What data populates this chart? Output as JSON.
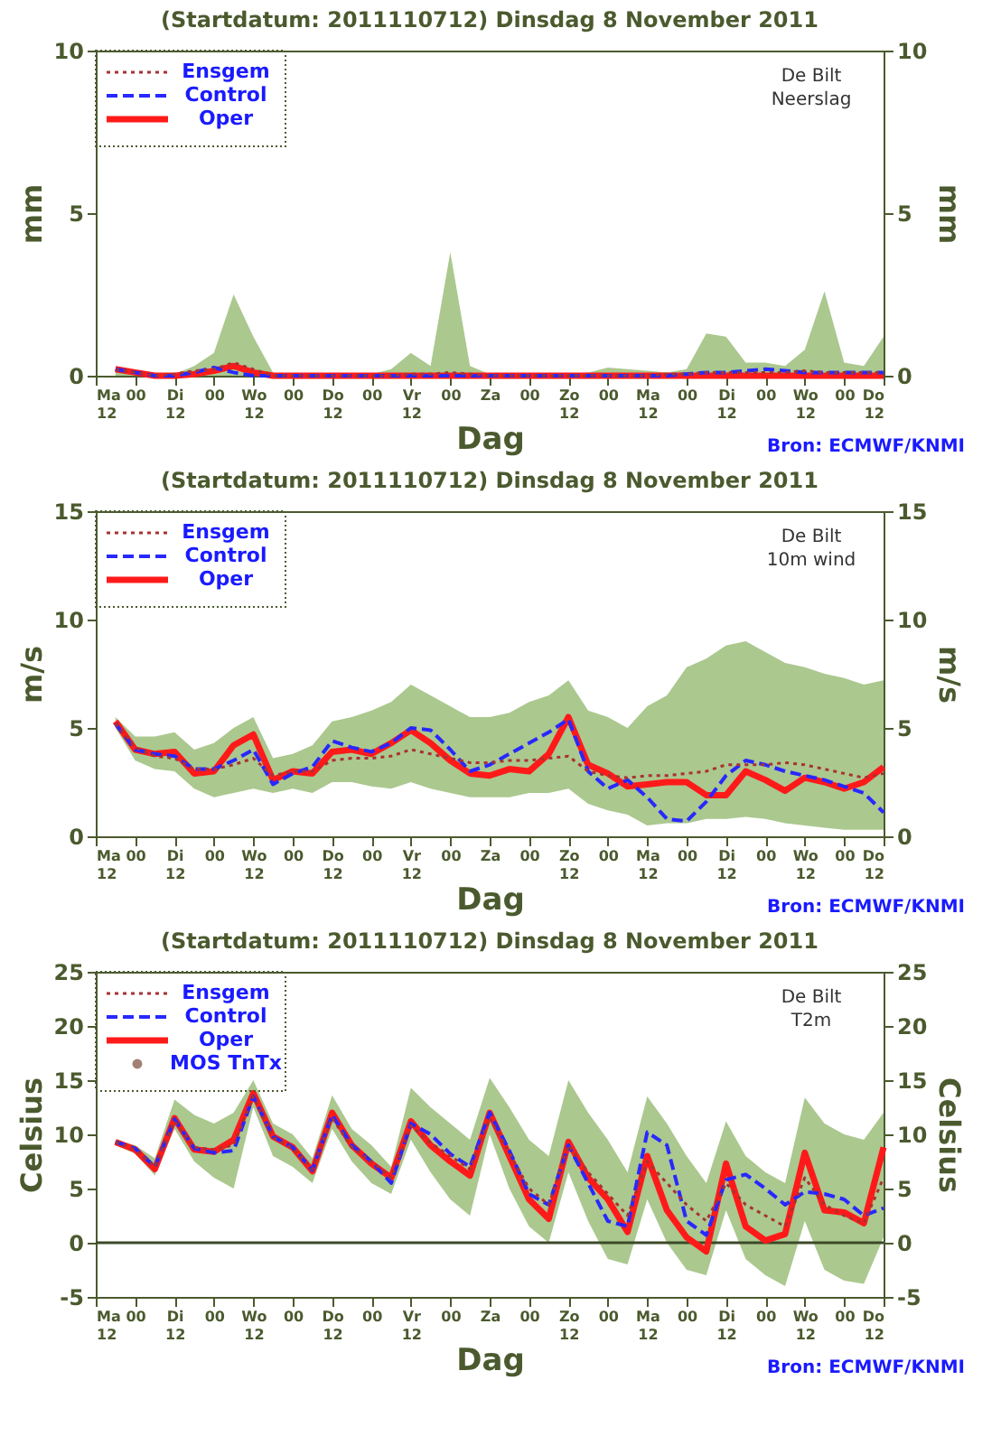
{
  "chart_data": [
    {
      "type": "line",
      "title": "(Startdatum: 2011110712)   Dinsdag    8 November  2011",
      "xlabel": "Dag",
      "ylabel": "mm",
      "y2label": "mm",
      "legend": "top left",
      "annotations": [
        "De Bilt",
        "Neerslag",
        "Bron: ECMWF/KNMI"
      ],
      "x": [
        "2011-11-07T18:00",
        "2011-11-08T00:00",
        "2011-11-08T06:00",
        "2011-11-08T12:00",
        "2011-11-08T18:00",
        "2011-11-09T00:00",
        "2011-11-09T06:00",
        "2011-11-09T12:00",
        "2011-11-09T18:00",
        "2011-11-10T00:00",
        "2011-11-10T06:00",
        "2011-11-10T12:00",
        "2011-11-10T18:00",
        "2011-11-11T00:00",
        "2011-11-11T06:00",
        "2011-11-11T12:00",
        "2011-11-11T18:00",
        "2011-11-12T00:00",
        "2011-11-12T06:00",
        "2011-11-12T12:00",
        "2011-11-12T18:00",
        "2011-11-13T00:00",
        "2011-11-13T06:00",
        "2011-11-13T12:00",
        "2011-11-13T18:00",
        "2011-11-14T00:00",
        "2011-11-14T06:00",
        "2011-11-14T12:00",
        "2011-11-14T18:00",
        "2011-11-15T00:00",
        "2011-11-15T06:00",
        "2011-11-15T12:00",
        "2011-11-15T18:00",
        "2011-11-16T00:00",
        "2011-11-16T06:00",
        "2011-11-16T12:00",
        "2011-11-16T18:00",
        "2011-11-17T00:00",
        "2011-11-17T06:00",
        "2011-11-17T12:00"
      ],
      "xlim": [
        "2011-11-07T12:00",
        "2011-11-17T12:00"
      ],
      "xticks": [
        {
          "value": "2011-11-07T12:00",
          "label": "Ma\n12"
        },
        {
          "value": "2011-11-08T00:00",
          "label": "00"
        },
        {
          "value": "2011-11-08T12:00",
          "label": "Di\n12"
        },
        {
          "value": "2011-11-09T00:00",
          "label": "00"
        },
        {
          "value": "2011-11-09T12:00",
          "label": "Wo\n12"
        },
        {
          "value": "2011-11-10T00:00",
          "label": "00"
        },
        {
          "value": "2011-11-10T12:00",
          "label": "Do\n12"
        },
        {
          "value": "2011-11-11T00:00",
          "label": "00"
        },
        {
          "value": "2011-11-11T12:00",
          "label": "Vr\n12"
        },
        {
          "value": "2011-11-12T00:00",
          "label": "00"
        },
        {
          "value": "2011-11-12T12:00",
          "label": "Za"
        },
        {
          "value": "2011-11-13T00:00",
          "label": "00"
        },
        {
          "value": "2011-11-13T12:00",
          "label": "Zo\n12"
        },
        {
          "value": "2011-11-14T00:00",
          "label": "00"
        },
        {
          "value": "2011-11-14T12:00",
          "label": "Ma\n12"
        },
        {
          "value": "2011-11-15T00:00",
          "label": "00"
        },
        {
          "value": "2011-11-15T12:00",
          "label": "Di\n12"
        },
        {
          "value": "2011-11-16T00:00",
          "label": "00"
        },
        {
          "value": "2011-11-16T12:00",
          "label": "Wo\n12"
        },
        {
          "value": "2011-11-17T00:00",
          "label": "00"
        },
        {
          "value": "2011-11-17T12:00",
          "label": "Do\n12"
        }
      ],
      "ylim": [
        0,
        10
      ],
      "yticks": [
        0,
        5,
        10
      ],
      "y2lim": [
        0,
        10
      ],
      "y2ticks": [
        0,
        5,
        10
      ],
      "series": [
        {
          "name": "Ensgem",
          "color": "#a83232",
          "line_style": "dotted",
          "values": [
            0.2,
            0.1,
            0.0,
            0.05,
            0.15,
            0.2,
            0.4,
            0.2,
            0,
            0,
            0,
            0,
            0,
            0,
            0,
            0.05,
            0.05,
            0.1,
            0.05,
            0,
            0,
            0,
            0,
            0,
            0,
            0,
            0,
            0,
            0.05,
            0.05,
            0.1,
            0.1,
            0.1,
            0.1,
            0.1,
            0.15,
            0.1,
            0.1,
            0.1,
            0.1
          ],
          "lower": [
            0,
            0,
            0,
            0,
            0,
            0,
            0,
            0,
            0,
            0,
            0,
            0,
            0,
            0,
            0,
            0,
            0,
            0,
            0,
            0,
            0,
            0,
            0,
            0,
            0,
            0,
            0,
            0,
            0,
            0,
            0,
            0,
            0,
            0,
            0,
            0,
            0,
            0,
            0,
            0
          ],
          "upper": [
            0.2,
            0.1,
            0.05,
            0.05,
            0.3,
            0.7,
            2.5,
            1.2,
            0.1,
            0,
            0,
            0.05,
            0,
            0.05,
            0.2,
            0.7,
            0.3,
            3.8,
            0.3,
            0.05,
            0.05,
            0,
            0.05,
            0.05,
            0.1,
            0.25,
            0.2,
            0.15,
            0.1,
            0.2,
            1.3,
            1.2,
            0.4,
            0.4,
            0.3,
            0.8,
            2.6,
            0.4,
            0.3,
            1.2
          ]
        },
        {
          "name": "Control",
          "color": "#2828ff",
          "line_style": "dashed",
          "values": [
            0.2,
            0.1,
            0.0,
            0.0,
            0.1,
            0.25,
            0.1,
            0.0,
            0,
            0,
            0,
            0,
            0,
            0,
            0,
            0,
            0,
            0,
            0,
            0,
            0,
            0,
            0,
            0,
            0,
            0,
            0,
            0,
            0,
            0.05,
            0.1,
            0.1,
            0.15,
            0.2,
            0.15,
            0.1,
            0.1,
            0.1,
            0.1,
            0.1
          ]
        },
        {
          "name": "Oper",
          "color": "#ff1a1a",
          "line_style": "solid",
          "values": [
            0.2,
            0.1,
            0.0,
            0.0,
            0.05,
            0.15,
            0.3,
            0.1,
            0,
            0,
            0,
            0,
            0,
            0,
            0,
            0,
            0,
            0,
            0,
            0,
            0,
            0,
            0,
            0,
            0,
            0,
            0,
            0,
            0,
            0,
            0,
            0,
            0,
            0,
            0,
            0,
            0,
            0,
            0,
            0
          ]
        }
      ]
    },
    {
      "type": "line",
      "title": "(Startdatum: 2011110712)   Dinsdag    8 November  2011",
      "xlabel": "Dag",
      "ylabel": "m/s",
      "y2label": "m/s",
      "legend": "top left",
      "annotations": [
        "De Bilt",
        "10m wind",
        "Bron: ECMWF/KNMI"
      ],
      "x": [
        "2011-11-07T18:00",
        "2011-11-08T00:00",
        "2011-11-08T06:00",
        "2011-11-08T12:00",
        "2011-11-08T18:00",
        "2011-11-09T00:00",
        "2011-11-09T06:00",
        "2011-11-09T12:00",
        "2011-11-09T18:00",
        "2011-11-10T00:00",
        "2011-11-10T06:00",
        "2011-11-10T12:00",
        "2011-11-10T18:00",
        "2011-11-11T00:00",
        "2011-11-11T06:00",
        "2011-11-11T12:00",
        "2011-11-11T18:00",
        "2011-11-12T00:00",
        "2011-11-12T06:00",
        "2011-11-12T12:00",
        "2011-11-12T18:00",
        "2011-11-13T00:00",
        "2011-11-13T06:00",
        "2011-11-13T12:00",
        "2011-11-13T18:00",
        "2011-11-14T00:00",
        "2011-11-14T06:00",
        "2011-11-14T12:00",
        "2011-11-14T18:00",
        "2011-11-15T00:00",
        "2011-11-15T06:00",
        "2011-11-15T12:00",
        "2011-11-15T18:00",
        "2011-11-16T00:00",
        "2011-11-16T06:00",
        "2011-11-16T12:00",
        "2011-11-16T18:00",
        "2011-11-17T00:00",
        "2011-11-17T06:00",
        "2011-11-17T12:00"
      ],
      "xlim": [
        "2011-11-07T12:00",
        "2011-11-17T12:00"
      ],
      "xticks": [
        {
          "value": "2011-11-07T12:00",
          "label": "Ma\n12"
        },
        {
          "value": "2011-11-08T00:00",
          "label": "00"
        },
        {
          "value": "2011-11-08T12:00",
          "label": "Di\n12"
        },
        {
          "value": "2011-11-09T00:00",
          "label": "00"
        },
        {
          "value": "2011-11-09T12:00",
          "label": "Wo\n12"
        },
        {
          "value": "2011-11-10T00:00",
          "label": "00"
        },
        {
          "value": "2011-11-10T12:00",
          "label": "Do\n12"
        },
        {
          "value": "2011-11-11T00:00",
          "label": "00"
        },
        {
          "value": "2011-11-11T12:00",
          "label": "Vr\n12"
        },
        {
          "value": "2011-11-12T00:00",
          "label": "00"
        },
        {
          "value": "2011-11-12T12:00",
          "label": "Za"
        },
        {
          "value": "2011-11-13T00:00",
          "label": "00"
        },
        {
          "value": "2011-11-13T12:00",
          "label": "Zo\n12"
        },
        {
          "value": "2011-11-14T00:00",
          "label": "00"
        },
        {
          "value": "2011-11-14T12:00",
          "label": "Ma\n12"
        },
        {
          "value": "2011-11-15T00:00",
          "label": "00"
        },
        {
          "value": "2011-11-15T12:00",
          "label": "Di\n12"
        },
        {
          "value": "2011-11-16T00:00",
          "label": "00"
        },
        {
          "value": "2011-11-16T12:00",
          "label": "Wo\n12"
        },
        {
          "value": "2011-11-17T00:00",
          "label": "00"
        },
        {
          "value": "2011-11-17T12:00",
          "label": "Do\n12"
        }
      ],
      "ylim": [
        0,
        15
      ],
      "yticks": [
        0,
        5,
        10,
        15
      ],
      "y2lim": [
        0,
        15
      ],
      "y2ticks": [
        0,
        5,
        10,
        15
      ],
      "series": [
        {
          "name": "Ensgem",
          "color": "#a83232",
          "line_style": "dotted",
          "values": [
            5.2,
            4.1,
            3.7,
            3.6,
            3.1,
            3.1,
            3.3,
            3.6,
            2.8,
            3.0,
            3.0,
            3.5,
            3.6,
            3.6,
            3.7,
            4.0,
            3.8,
            3.6,
            3.4,
            3.4,
            3.5,
            3.5,
            3.6,
            3.7,
            3.0,
            2.8,
            2.7,
            2.8,
            2.8,
            2.9,
            3.0,
            3.3,
            3.3,
            3.3,
            3.4,
            3.3,
            3.1,
            2.9,
            2.7,
            2.9
          ],
          "lower": [
            5.0,
            3.5,
            3.1,
            3.0,
            2.2,
            1.8,
            2.0,
            2.2,
            2.0,
            2.2,
            2.0,
            2.5,
            2.5,
            2.3,
            2.2,
            2.5,
            2.2,
            2.0,
            1.8,
            1.8,
            1.8,
            2.0,
            2.0,
            2.2,
            1.5,
            1.2,
            1.0,
            0.5,
            0.6,
            0.6,
            0.8,
            0.8,
            0.9,
            0.8,
            0.6,
            0.5,
            0.4,
            0.3,
            0.3,
            0.3
          ],
          "upper": [
            5.5,
            4.6,
            4.6,
            4.8,
            4.0,
            4.3,
            5.0,
            5.5,
            3.6,
            3.8,
            4.2,
            5.3,
            5.5,
            5.8,
            6.2,
            7.0,
            6.5,
            6.0,
            5.5,
            5.5,
            5.7,
            6.2,
            6.5,
            7.2,
            5.8,
            5.5,
            5.0,
            6.0,
            6.5,
            7.8,
            8.2,
            8.8,
            9.0,
            8.5,
            8.0,
            7.8,
            7.5,
            7.3,
            7.0,
            7.2
          ]
        },
        {
          "name": "Control",
          "color": "#2828ff",
          "line_style": "dashed",
          "values": [
            5.2,
            4.0,
            3.8,
            3.7,
            3.1,
            3.1,
            3.5,
            4.0,
            2.4,
            2.9,
            3.2,
            4.4,
            4.1,
            3.9,
            4.3,
            5.0,
            4.9,
            4.0,
            3.0,
            3.3,
            3.8,
            4.3,
            4.8,
            5.4,
            3.0,
            2.2,
            2.6,
            1.8,
            0.8,
            0.7,
            1.6,
            2.8,
            3.5,
            3.3,
            3.0,
            2.8,
            2.6,
            2.3,
            2.0,
            1.1
          ]
        },
        {
          "name": "Oper",
          "color": "#ff1a1a",
          "line_style": "solid",
          "values": [
            5.3,
            4.0,
            3.8,
            3.9,
            2.9,
            3.0,
            4.2,
            4.7,
            2.6,
            3.0,
            2.9,
            3.9,
            4.0,
            3.8,
            4.3,
            4.9,
            4.3,
            3.5,
            2.9,
            2.8,
            3.1,
            3.0,
            3.8,
            5.5,
            3.3,
            2.9,
            2.3,
            2.4,
            2.5,
            2.5,
            1.9,
            1.9,
            3.0,
            2.6,
            2.1,
            2.7,
            2.5,
            2.2,
            2.5,
            3.2
          ]
        }
      ]
    },
    {
      "type": "line",
      "title": "(Startdatum: 2011110712)   Dinsdag    8 November  2011",
      "xlabel": "Dag",
      "ylabel": "Celsius",
      "y2label": "Celsius",
      "legend": "top left",
      "annotations": [
        "De Bilt",
        "T2m",
        "Bron: ECMWF/KNMI"
      ],
      "x": [
        "2011-11-07T18:00",
        "2011-11-08T00:00",
        "2011-11-08T06:00",
        "2011-11-08T12:00",
        "2011-11-08T18:00",
        "2011-11-09T00:00",
        "2011-11-09T06:00",
        "2011-11-09T12:00",
        "2011-11-09T18:00",
        "2011-11-10T00:00",
        "2011-11-10T06:00",
        "2011-11-10T12:00",
        "2011-11-10T18:00",
        "2011-11-11T00:00",
        "2011-11-11T06:00",
        "2011-11-11T12:00",
        "2011-11-11T18:00",
        "2011-11-12T00:00",
        "2011-11-12T06:00",
        "2011-11-12T12:00",
        "2011-11-12T18:00",
        "2011-11-13T00:00",
        "2011-11-13T06:00",
        "2011-11-13T12:00",
        "2011-11-13T18:00",
        "2011-11-14T00:00",
        "2011-11-14T06:00",
        "2011-11-14T12:00",
        "2011-11-14T18:00",
        "2011-11-15T00:00",
        "2011-11-15T06:00",
        "2011-11-15T12:00",
        "2011-11-15T18:00",
        "2011-11-16T00:00",
        "2011-11-16T06:00",
        "2011-11-16T12:00",
        "2011-11-16T18:00",
        "2011-11-17T00:00",
        "2011-11-17T06:00",
        "2011-11-17T12:00"
      ],
      "xlim": [
        "2011-11-07T12:00",
        "2011-11-17T12:00"
      ],
      "xticks": [
        {
          "value": "2011-11-07T12:00",
          "label": "Ma\n12"
        },
        {
          "value": "2011-11-08T00:00",
          "label": "00"
        },
        {
          "value": "2011-11-08T12:00",
          "label": "Di\n12"
        },
        {
          "value": "2011-11-09T00:00",
          "label": "00"
        },
        {
          "value": "2011-11-09T12:00",
          "label": "Wo\n12"
        },
        {
          "value": "2011-11-10T00:00",
          "label": "00"
        },
        {
          "value": "2011-11-10T12:00",
          "label": "Do\n12"
        },
        {
          "value": "2011-11-11T00:00",
          "label": "00"
        },
        {
          "value": "2011-11-11T12:00",
          "label": "Vr\n12"
        },
        {
          "value": "2011-11-12T00:00",
          "label": "00"
        },
        {
          "value": "2011-11-12T12:00",
          "label": "Za"
        },
        {
          "value": "2011-11-13T00:00",
          "label": "00"
        },
        {
          "value": "2011-11-13T12:00",
          "label": "Zo\n12"
        },
        {
          "value": "2011-11-14T00:00",
          "label": "00"
        },
        {
          "value": "2011-11-14T12:00",
          "label": "Ma\n12"
        },
        {
          "value": "2011-11-15T00:00",
          "label": "00"
        },
        {
          "value": "2011-11-15T12:00",
          "label": "Di\n12"
        },
        {
          "value": "2011-11-16T00:00",
          "label": "00"
        },
        {
          "value": "2011-11-16T12:00",
          "label": "Wo\n12"
        },
        {
          "value": "2011-11-17T00:00",
          "label": "00"
        },
        {
          "value": "2011-11-17T12:00",
          "label": "Do\n12"
        }
      ],
      "ylim": [
        -5,
        25
      ],
      "yticks": [
        -5,
        0,
        5,
        10,
        15,
        20,
        25
      ],
      "y2lim": [
        -5,
        25
      ],
      "y2ticks": [
        -5,
        0,
        5,
        10,
        15,
        20,
        25
      ],
      "ref_lines": [
        {
          "axis": "y",
          "value": 0,
          "color": "#3c4a28"
        }
      ],
      "series": [
        {
          "name": "Ensgem",
          "color": "#a83232",
          "line_style": "dotted",
          "values": [
            9.3,
            8.6,
            7.0,
            11.2,
            8.8,
            8.6,
            9.0,
            13.5,
            9.7,
            8.7,
            6.8,
            11.5,
            8.8,
            7.5,
            6.0,
            10.8,
            9.2,
            8.0,
            6.8,
            11.5,
            8.3,
            5.0,
            3.5,
            9.0,
            6.5,
            4.5,
            2.5,
            7.5,
            5.5,
            3.5,
            2.0,
            5.5,
            3.5,
            2.5,
            1.5,
            6.0,
            3.5,
            2.5,
            1.8,
            6.0
          ],
          "lower": [
            9.0,
            8.2,
            6.2,
            10.5,
            7.5,
            6.0,
            5.0,
            12.5,
            8.0,
            7.0,
            5.5,
            10.5,
            7.5,
            5.5,
            4.5,
            9.5,
            6.5,
            4.0,
            2.5,
            10.0,
            5.0,
            1.5,
            0.0,
            6.5,
            2.0,
            -1.5,
            -2.0,
            4.0,
            0.0,
            -2.5,
            -3.0,
            3.0,
            -1.5,
            -3.0,
            -4.0,
            2.0,
            -2.5,
            -3.5,
            -3.8,
            0.5
          ],
          "upper": [
            9.5,
            9.0,
            7.8,
            13.2,
            11.8,
            11.0,
            12.0,
            15.0,
            11.0,
            10.0,
            7.8,
            13.6,
            10.5,
            9.0,
            7.0,
            14.3,
            12.5,
            11.0,
            9.5,
            15.2,
            12.5,
            9.5,
            8.0,
            15.0,
            12.0,
            9.5,
            6.5,
            13.5,
            11.0,
            8.0,
            5.5,
            11.2,
            8.0,
            6.5,
            5.5,
            13.4,
            11.0,
            10.0,
            9.5,
            12.0
          ]
        },
        {
          "name": "Control",
          "color": "#2828ff",
          "line_style": "dashed",
          "values": [
            9.3,
            8.7,
            7.0,
            11.4,
            8.7,
            8.3,
            8.5,
            13.5,
            9.8,
            8.8,
            6.7,
            11.8,
            9.0,
            7.5,
            5.5,
            11.0,
            10.0,
            8.2,
            7.0,
            12.0,
            8.5,
            4.5,
            3.5,
            9.0,
            5.5,
            2.0,
            1.5,
            10.2,
            9.0,
            2.0,
            0.7,
            5.8,
            6.3,
            5.0,
            3.5,
            4.7,
            4.5,
            4.0,
            2.5,
            3.2
          ]
        },
        {
          "name": "Oper",
          "color": "#ff1a1a",
          "line_style": "solid",
          "values": [
            9.3,
            8.6,
            6.8,
            11.5,
            8.6,
            8.4,
            9.5,
            13.8,
            9.8,
            8.8,
            6.6,
            12.0,
            9.0,
            7.3,
            6.0,
            11.2,
            9.0,
            7.5,
            6.2,
            12.0,
            8.0,
            4.0,
            2.2,
            9.3,
            6.0,
            4.0,
            1.0,
            8.0,
            3.0,
            0.5,
            -0.8,
            7.3,
            1.5,
            0.2,
            0.8,
            8.3,
            3.0,
            2.8,
            1.8,
            8.8
          ]
        },
        {
          "name": "MOS TnTx",
          "type": "scatter",
          "marker": "circle",
          "color": "#7a4a3a",
          "values": [
            null,
            null,
            null,
            null,
            null,
            null,
            null,
            null,
            null,
            null,
            null,
            null,
            null,
            null,
            null,
            null,
            null,
            null,
            null,
            null,
            null,
            null,
            null,
            null,
            null,
            null,
            null,
            null,
            null,
            null,
            null,
            null,
            null,
            null,
            null,
            null,
            null,
            null,
            null,
            null
          ]
        }
      ]
    }
  ]
}
